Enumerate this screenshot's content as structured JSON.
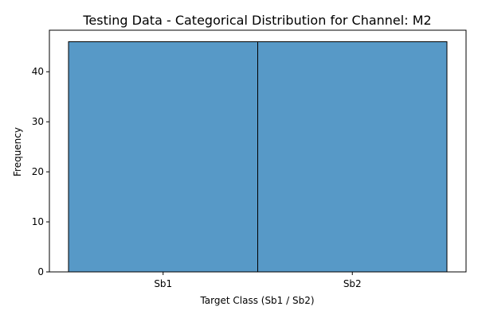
{
  "chart_data": {
    "type": "bar",
    "title": "Testing Data - Categorical Distribution for Channel: M2",
    "xlabel": "Target Class (Sb1 / Sb2)",
    "ylabel": "Frequency",
    "categories": [
      "Sb1",
      "Sb2"
    ],
    "values": [
      46,
      46
    ],
    "ylim": [
      0,
      48.3
    ],
    "yticks": [
      0,
      10,
      20,
      30,
      40
    ],
    "grid": false,
    "bar_color": "#5799c7",
    "edge_color": "#000000"
  }
}
